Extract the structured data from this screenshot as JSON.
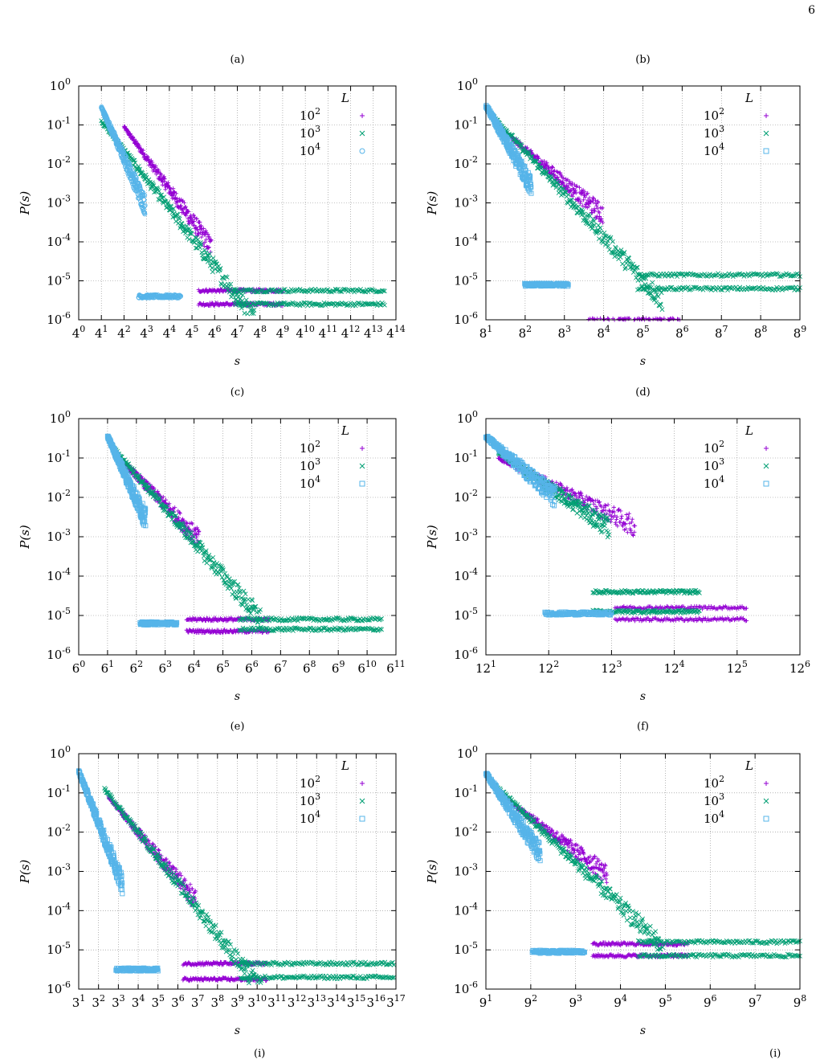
{
  "page_number": "6",
  "footer": {
    "left_fragment": "(i)",
    "right_fragment": "(i)"
  },
  "colors": {
    "L100": "#9400d3",
    "L1000": "#009e73",
    "L10000": "#56b4e9"
  },
  "chart_data": [
    {
      "panel": "(a)",
      "type": "scatter",
      "base": 4,
      "x_exponents": [
        0,
        14
      ],
      "y_exponents": [
        -6,
        0
      ],
      "xlabel": "s",
      "ylabel": "P(s)",
      "legend_title": "L",
      "legend_position": "top-right",
      "grid": true,
      "x_scale": "log",
      "y_scale": "log",
      "series": [
        {
          "name": "10^2",
          "marker": "plus",
          "color": "#9400d3",
          "x_log_range": [
            2,
            9.0
          ],
          "y_log_at_start": -1.05,
          "slope": -0.8,
          "tail_levels": [
            -5.25,
            -5.6
          ]
        },
        {
          "name": "10^3",
          "marker": "cross",
          "color": "#009e73",
          "x_log_range": [
            1,
            13.5
          ],
          "y_log_at_start": -0.9,
          "slope": -0.75,
          "tail_levels": [
            -5.25,
            -5.6
          ]
        },
        {
          "name": "10^4",
          "marker": "circle",
          "color": "#56b4e9",
          "x_log_range": [
            1,
            4.5
          ],
          "y_log_at_start": -0.55,
          "slope": -1.3,
          "tail_levels": [
            -5.4
          ]
        }
      ]
    },
    {
      "panel": "(b)",
      "type": "scatter",
      "base": 8,
      "x_exponents": [
        1,
        9
      ],
      "y_exponents": [
        -6,
        0
      ],
      "xlabel": "s",
      "ylabel": "P(s)",
      "legend_title": "L",
      "legend_position": "top-right",
      "grid": true,
      "x_scale": "log",
      "y_scale": "log",
      "series": [
        {
          "name": "10^2",
          "marker": "plus",
          "color": "#9400d3",
          "x_log_range": [
            1.5,
            6.0
          ],
          "y_log_at_start": -1.2,
          "slope": -0.85,
          "tail_levels": [
            -6.0
          ]
        },
        {
          "name": "10^3",
          "marker": "cross",
          "color": "#009e73",
          "x_log_range": [
            1.2,
            9.0
          ],
          "y_log_at_start": -0.8,
          "slope": -1.1,
          "tail_levels": [
            -4.85,
            -5.2
          ]
        },
        {
          "name": "10^4",
          "marker": "box",
          "color": "#56b4e9",
          "x_log_range": [
            1.0,
            3.1
          ],
          "y_log_at_start": -0.5,
          "slope": -1.8,
          "tail_levels": [
            -5.1
          ]
        }
      ]
    },
    {
      "panel": "(c)",
      "type": "scatter",
      "base": 6,
      "x_exponents": [
        0,
        11
      ],
      "y_exponents": [
        -6,
        0
      ],
      "xlabel": "s",
      "ylabel": "P(s)",
      "legend_title": "L",
      "legend_position": "top-right",
      "grid": true,
      "x_scale": "log",
      "y_scale": "log",
      "series": [
        {
          "name": "10^2",
          "marker": "plus",
          "color": "#9400d3",
          "x_log_range": [
            1.2,
            6.6
          ],
          "y_log_at_start": -0.85,
          "slope": -0.75,
          "tail_levels": [
            -5.1,
            -5.4
          ]
        },
        {
          "name": "10^3",
          "marker": "cross",
          "color": "#009e73",
          "x_log_range": [
            1.2,
            10.5
          ],
          "y_log_at_start": -0.75,
          "slope": -0.85,
          "tail_levels": [
            -5.1,
            -5.35
          ]
        },
        {
          "name": "10^4",
          "marker": "box",
          "color": "#56b4e9",
          "x_log_range": [
            1.0,
            3.4
          ],
          "y_log_at_start": -0.45,
          "slope": -1.6,
          "tail_levels": [
            -5.2
          ]
        }
      ]
    },
    {
      "panel": "(d)",
      "type": "scatter",
      "base": 12,
      "x_exponents": [
        1,
        6
      ],
      "y_exponents": [
        -6,
        0
      ],
      "xlabel": "s",
      "ylabel": "P(s)",
      "legend_title": "L",
      "legend_position": "top-right",
      "grid": true,
      "x_scale": "log",
      "y_scale": "log",
      "series": [
        {
          "name": "10^2",
          "marker": "plus",
          "color": "#9400d3",
          "x_log_range": [
            1.2,
            5.15
          ],
          "y_log_at_start": -1.0,
          "slope": -0.8,
          "tail_levels": [
            -4.8,
            -5.1
          ]
        },
        {
          "name": "10^3",
          "marker": "cross",
          "color": "#009e73",
          "x_log_range": [
            1.2,
            4.4
          ],
          "y_log_at_start": -0.85,
          "slope": -1.1,
          "tail_levels": [
            -4.4,
            -4.9
          ]
        },
        {
          "name": "10^4",
          "marker": "box",
          "color": "#56b4e9",
          "x_log_range": [
            1.0,
            3.0
          ],
          "y_log_at_start": -0.45,
          "slope": -1.4,
          "tail_levels": [
            -4.95
          ]
        }
      ]
    },
    {
      "panel": "(e)",
      "type": "scatter",
      "base": 3,
      "x_exponents": [
        1,
        17
      ],
      "y_exponents": [
        -6,
        0
      ],
      "xlabel": "s",
      "ylabel": "P(s)",
      "legend_title": "L",
      "legend_position": "top-right",
      "grid": true,
      "x_scale": "log",
      "y_scale": "log",
      "series": [
        {
          "name": "10^2",
          "marker": "plus",
          "color": "#9400d3",
          "x_log_range": [
            2.5,
            10.5
          ],
          "y_log_at_start": -1.1,
          "slope": -0.6,
          "tail_levels": [
            -5.35,
            -5.75
          ]
        },
        {
          "name": "10^3",
          "marker": "cross",
          "color": "#009e73",
          "x_log_range": [
            2.3,
            16.9
          ],
          "y_log_at_start": -0.9,
          "slope": -0.65,
          "tail_levels": [
            -5.35,
            -5.7
          ]
        },
        {
          "name": "10^4",
          "marker": "box",
          "color": "#56b4e9",
          "x_log_range": [
            1.0,
            5.0
          ],
          "y_log_at_start": -0.45,
          "slope": -1.3,
          "tail_levels": [
            -5.5
          ]
        }
      ]
    },
    {
      "panel": "(f)",
      "type": "scatter",
      "base": 9,
      "x_exponents": [
        1,
        8
      ],
      "y_exponents": [
        -6,
        0
      ],
      "xlabel": "s",
      "ylabel": "P(s)",
      "legend_title": "L",
      "legend_position": "top-right",
      "grid": true,
      "x_scale": "log",
      "y_scale": "log",
      "series": [
        {
          "name": "10^2",
          "marker": "plus",
          "color": "#9400d3",
          "x_log_range": [
            1.5,
            5.5
          ],
          "y_log_at_start": -1.2,
          "slope": -0.85,
          "tail_levels": [
            -4.85,
            -5.15
          ]
        },
        {
          "name": "10^3",
          "marker": "cross",
          "color": "#009e73",
          "x_log_range": [
            1.2,
            8.0
          ],
          "y_log_at_start": -0.8,
          "slope": -1.1,
          "tail_levels": [
            -4.8,
            -5.15
          ]
        },
        {
          "name": "10^4",
          "marker": "box",
          "color": "#56b4e9",
          "x_log_range": [
            1.0,
            3.2
          ],
          "y_log_at_start": -0.5,
          "slope": -1.7,
          "tail_levels": [
            -5.05
          ]
        }
      ]
    }
  ]
}
